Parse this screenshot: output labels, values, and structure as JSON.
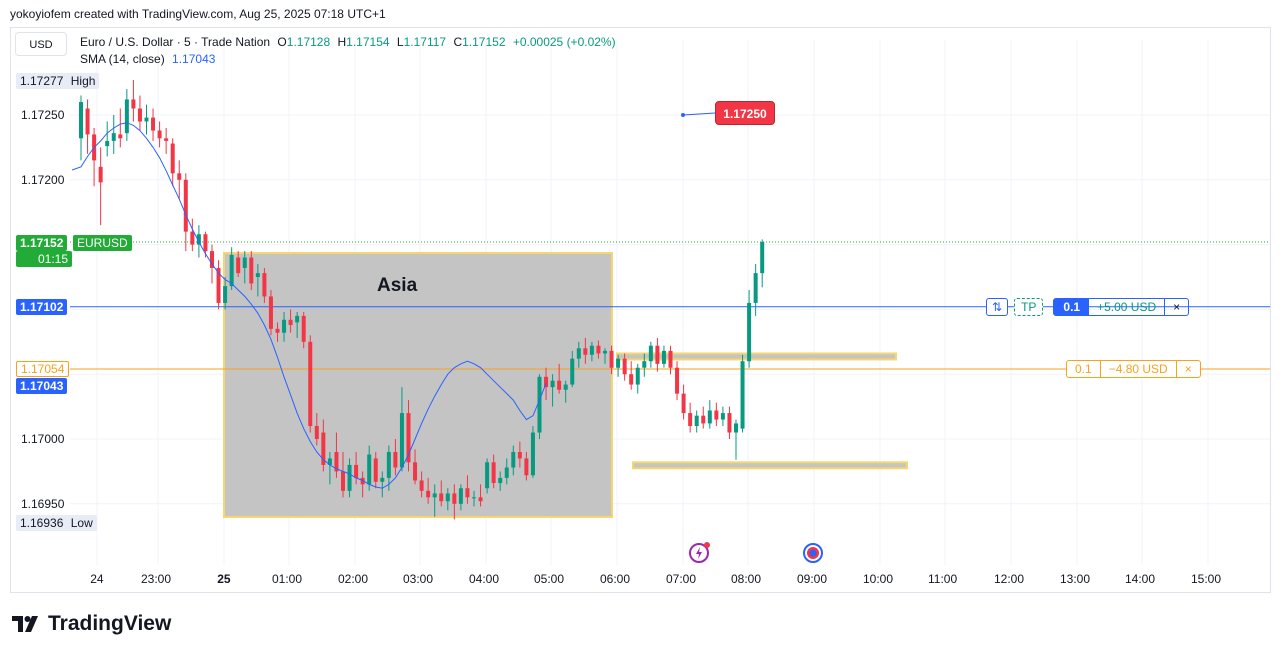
{
  "caption": "yokoyiofem created with TradingView.com, Aug 25, 2025 07:18 UTC+1",
  "currency_button": "USD",
  "legend": {
    "symbol": "Euro / U.S. Dollar · 5 · Trade Nation",
    "o_label": "O",
    "o": "1.17128",
    "h_label": "H",
    "h": "1.17154",
    "l_label": "L",
    "l": "1.17117",
    "c_label": "C",
    "c": "1.17152",
    "change": "+0.00025 (+0.02%)",
    "sma_label": "SMA (14, close)",
    "sma_value": "1.17043"
  },
  "colors": {
    "up": "#089981",
    "down": "#f23645",
    "sma": "#2962ff",
    "session_fill": "#c4c4c4",
    "session_border": "#f5d76e",
    "sl_line": "#f7a21b",
    "tp_line": "#2962ff"
  },
  "price_axis": {
    "ticks": [
      "1.17250",
      "1.17200",
      "1.17000",
      "1.16950"
    ],
    "high_price": "1.17277",
    "high_label": "High",
    "low_price": "1.16936",
    "low_label": "Low",
    "last_price": "1.17152",
    "symbol_tag": "EURUSD",
    "countdown": "01:15",
    "tp_price": "1.17102",
    "sl_price": "1.17054",
    "sma_price": "1.17043"
  },
  "time_axis": [
    "24",
    "23:00",
    "25",
    "01:00",
    "02:00",
    "03:00",
    "04:00",
    "05:00",
    "06:00",
    "07:00",
    "08:00",
    "09:00",
    "10:00",
    "11:00",
    "12:00",
    "13:00",
    "14:00",
    "15:00"
  ],
  "session_box": {
    "label": "Asia"
  },
  "callout": {
    "price": "1.17250"
  },
  "tp_order": {
    "icon": "⇅",
    "tp_label": "TP",
    "qty": "0.1",
    "pnl": "+5.00 USD",
    "close": "×"
  },
  "sl_order": {
    "qty": "0.1",
    "pnl": "−4.80 USD",
    "close": "×"
  },
  "footer": {
    "brand": "TradingView"
  },
  "chart_data": {
    "type": "candlestick",
    "series_name": "EURUSD",
    "timeframe": "5",
    "y_range": [
      1.1691,
      1.17305
    ],
    "x_range_labels": [
      "23:40",
      "15:40"
    ],
    "candles": [
      {
        "o": 1.17232,
        "h": 1.17265,
        "l": 1.17215,
        "c": 1.1726
      },
      {
        "o": 1.17255,
        "h": 1.17262,
        "l": 1.1722,
        "c": 1.17235
      },
      {
        "o": 1.17235,
        "h": 1.1724,
        "l": 1.17195,
        "c": 1.17215
      },
      {
        "o": 1.1721,
        "h": 1.17225,
        "l": 1.17165,
        "c": 1.17198
      },
      {
        "o": 1.17226,
        "h": 1.17245,
        "l": 1.17218,
        "c": 1.1723
      },
      {
        "o": 1.1723,
        "h": 1.1725,
        "l": 1.1722,
        "c": 1.17236
      },
      {
        "o": 1.17235,
        "h": 1.17255,
        "l": 1.17225,
        "c": 1.17232
      },
      {
        "o": 1.17236,
        "h": 1.1727,
        "l": 1.1723,
        "c": 1.17262
      },
      {
        "o": 1.17262,
        "h": 1.17277,
        "l": 1.17245,
        "c": 1.17255
      },
      {
        "o": 1.17255,
        "h": 1.17265,
        "l": 1.17238,
        "c": 1.17245
      },
      {
        "o": 1.17245,
        "h": 1.17258,
        "l": 1.17235,
        "c": 1.17248
      },
      {
        "o": 1.17248,
        "h": 1.17255,
        "l": 1.1723,
        "c": 1.17238
      },
      {
        "o": 1.17238,
        "h": 1.17245,
        "l": 1.17225,
        "c": 1.17232
      },
      {
        "o": 1.17232,
        "h": 1.1724,
        "l": 1.1722,
        "c": 1.1723
      },
      {
        "o": 1.17228,
        "h": 1.17232,
        "l": 1.17195,
        "c": 1.17205
      },
      {
        "o": 1.17205,
        "h": 1.17215,
        "l": 1.17185,
        "c": 1.172
      },
      {
        "o": 1.172,
        "h": 1.17205,
        "l": 1.17145,
        "c": 1.1716
      },
      {
        "o": 1.1716,
        "h": 1.1717,
        "l": 1.17145,
        "c": 1.1715
      },
      {
        "o": 1.1715,
        "h": 1.17165,
        "l": 1.1714,
        "c": 1.17158
      },
      {
        "o": 1.17158,
        "h": 1.1716,
        "l": 1.1714,
        "c": 1.17145
      },
      {
        "o": 1.17145,
        "h": 1.1715,
        "l": 1.1712,
        "c": 1.17132
      },
      {
        "o": 1.17132,
        "h": 1.17138,
        "l": 1.171,
        "c": 1.17105
      },
      {
        "o": 1.17105,
        "h": 1.17125,
        "l": 1.171,
        "c": 1.17118
      },
      {
        "o": 1.17118,
        "h": 1.17148,
        "l": 1.17115,
        "c": 1.17142
      },
      {
        "o": 1.1714,
        "h": 1.17145,
        "l": 1.17125,
        "c": 1.17128
      },
      {
        "o": 1.17132,
        "h": 1.17145,
        "l": 1.1712,
        "c": 1.1714
      },
      {
        "o": 1.1714,
        "h": 1.17145,
        "l": 1.17115,
        "c": 1.1712
      },
      {
        "o": 1.17125,
        "h": 1.17135,
        "l": 1.1711,
        "c": 1.17128
      },
      {
        "o": 1.17128,
        "h": 1.17132,
        "l": 1.17105,
        "c": 1.1711
      },
      {
        "o": 1.1711,
        "h": 1.17115,
        "l": 1.1708,
        "c": 1.17085
      },
      {
        "o": 1.17085,
        "h": 1.1709,
        "l": 1.17075,
        "c": 1.17082
      },
      {
        "o": 1.17082,
        "h": 1.17098,
        "l": 1.17075,
        "c": 1.17092
      },
      {
        "o": 1.17092,
        "h": 1.171,
        "l": 1.17082,
        "c": 1.17088
      },
      {
        "o": 1.1709,
        "h": 1.17098,
        "l": 1.17078,
        "c": 1.17095
      },
      {
        "o": 1.17095,
        "h": 1.17098,
        "l": 1.1707,
        "c": 1.17075
      },
      {
        "o": 1.17075,
        "h": 1.1708,
        "l": 1.17005,
        "c": 1.1701
      },
      {
        "o": 1.1701,
        "h": 1.1702,
        "l": 1.16995,
        "c": 1.17
      },
      {
        "o": 1.17005,
        "h": 1.17015,
        "l": 1.16975,
        "c": 1.1698
      },
      {
        "o": 1.1698,
        "h": 1.1699,
        "l": 1.16965,
        "c": 1.16985
      },
      {
        "o": 1.1699,
        "h": 1.17005,
        "l": 1.1697,
        "c": 1.16975
      },
      {
        "o": 1.16975,
        "h": 1.1699,
        "l": 1.16955,
        "c": 1.1696
      },
      {
        "o": 1.1696,
        "h": 1.16985,
        "l": 1.16955,
        "c": 1.1698
      },
      {
        "o": 1.1698,
        "h": 1.1699,
        "l": 1.16965,
        "c": 1.1697
      },
      {
        "o": 1.1697,
        "h": 1.16975,
        "l": 1.16955,
        "c": 1.16965
      },
      {
        "o": 1.16965,
        "h": 1.16995,
        "l": 1.1696,
        "c": 1.16988
      },
      {
        "o": 1.16985,
        "h": 1.1699,
        "l": 1.16962,
        "c": 1.16967
      },
      {
        "o": 1.16967,
        "h": 1.16975,
        "l": 1.16955,
        "c": 1.1697
      },
      {
        "o": 1.1697,
        "h": 1.16995,
        "l": 1.1696,
        "c": 1.1699
      },
      {
        "o": 1.1699,
        "h": 1.17,
        "l": 1.16972,
        "c": 1.16978
      },
      {
        "o": 1.16978,
        "h": 1.1704,
        "l": 1.16975,
        "c": 1.1702
      },
      {
        "o": 1.1702,
        "h": 1.1703,
        "l": 1.16975,
        "c": 1.16982
      },
      {
        "o": 1.16982,
        "h": 1.16992,
        "l": 1.16965,
        "c": 1.16968
      },
      {
        "o": 1.16968,
        "h": 1.16975,
        "l": 1.16955,
        "c": 1.1696
      },
      {
        "o": 1.1696,
        "h": 1.1697,
        "l": 1.1695,
        "c": 1.16955
      },
      {
        "o": 1.16955,
        "h": 1.16965,
        "l": 1.1694,
        "c": 1.16958
      },
      {
        "o": 1.16958,
        "h": 1.16968,
        "l": 1.16948,
        "c": 1.16952
      },
      {
        "o": 1.16952,
        "h": 1.16962,
        "l": 1.16945,
        "c": 1.16958
      },
      {
        "o": 1.16958,
        "h": 1.16965,
        "l": 1.16938,
        "c": 1.1695
      },
      {
        "o": 1.1695,
        "h": 1.16965,
        "l": 1.16945,
        "c": 1.16962
      },
      {
        "o": 1.16962,
        "h": 1.16972,
        "l": 1.1695,
        "c": 1.16955
      },
      {
        "o": 1.16955,
        "h": 1.1696,
        "l": 1.16948,
        "c": 1.16955
      },
      {
        "o": 1.16955,
        "h": 1.16965,
        "l": 1.16948,
        "c": 1.16952
      },
      {
        "o": 1.16962,
        "h": 1.16985,
        "l": 1.16958,
        "c": 1.16982
      },
      {
        "o": 1.16982,
        "h": 1.16988,
        "l": 1.16962,
        "c": 1.16966
      },
      {
        "o": 1.16966,
        "h": 1.16975,
        "l": 1.1696,
        "c": 1.1697
      },
      {
        "o": 1.1697,
        "h": 1.16985,
        "l": 1.16965,
        "c": 1.16978
      },
      {
        "o": 1.16978,
        "h": 1.16995,
        "l": 1.16972,
        "c": 1.1699
      },
      {
        "o": 1.1699,
        "h": 1.16998,
        "l": 1.16978,
        "c": 1.16985
      },
      {
        "o": 1.16985,
        "h": 1.1699,
        "l": 1.16968,
        "c": 1.16972
      },
      {
        "o": 1.16972,
        "h": 1.1701,
        "l": 1.1697,
        "c": 1.17005
      },
      {
        "o": 1.17005,
        "h": 1.1705,
        "l": 1.17,
        "c": 1.17048
      },
      {
        "o": 1.17048,
        "h": 1.17055,
        "l": 1.1703,
        "c": 1.1704
      },
      {
        "o": 1.1704,
        "h": 1.1705,
        "l": 1.17025,
        "c": 1.17045
      },
      {
        "o": 1.17045,
        "h": 1.17058,
        "l": 1.17035,
        "c": 1.17038
      },
      {
        "o": 1.17038,
        "h": 1.17045,
        "l": 1.17028,
        "c": 1.17042
      },
      {
        "o": 1.17042,
        "h": 1.17068,
        "l": 1.1704,
        "c": 1.17062
      },
      {
        "o": 1.17062,
        "h": 1.17075,
        "l": 1.17055,
        "c": 1.1707
      },
      {
        "o": 1.1707,
        "h": 1.17078,
        "l": 1.17058,
        "c": 1.17065
      },
      {
        "o": 1.17065,
        "h": 1.17075,
        "l": 1.1706,
        "c": 1.17072
      },
      {
        "o": 1.17072,
        "h": 1.17076,
        "l": 1.17062,
        "c": 1.17066
      },
      {
        "o": 1.17066,
        "h": 1.1707,
        "l": 1.17058,
        "c": 1.17068
      },
      {
        "o": 1.17068,
        "h": 1.17072,
        "l": 1.1705,
        "c": 1.17055
      },
      {
        "o": 1.17055,
        "h": 1.17065,
        "l": 1.17048,
        "c": 1.17062
      },
      {
        "o": 1.17062,
        "h": 1.17066,
        "l": 1.17045,
        "c": 1.1705
      },
      {
        "o": 1.1705,
        "h": 1.1706,
        "l": 1.17038,
        "c": 1.17042
      },
      {
        "o": 1.17042,
        "h": 1.17058,
        "l": 1.17035,
        "c": 1.17055
      },
      {
        "o": 1.17055,
        "h": 1.17066,
        "l": 1.17048,
        "c": 1.1706
      },
      {
        "o": 1.1706,
        "h": 1.17075,
        "l": 1.17055,
        "c": 1.17072
      },
      {
        "o": 1.17072,
        "h": 1.17078,
        "l": 1.17052,
        "c": 1.17058
      },
      {
        "o": 1.17058,
        "h": 1.17072,
        "l": 1.17055,
        "c": 1.17068
      },
      {
        "o": 1.17068,
        "h": 1.17072,
        "l": 1.1705,
        "c": 1.17055
      },
      {
        "o": 1.17055,
        "h": 1.1706,
        "l": 1.1703,
        "c": 1.17035
      },
      {
        "o": 1.17035,
        "h": 1.17042,
        "l": 1.17015,
        "c": 1.1702
      },
      {
        "o": 1.1702,
        "h": 1.17028,
        "l": 1.17005,
        "c": 1.1701
      },
      {
        "o": 1.1701,
        "h": 1.17022,
        "l": 1.17005,
        "c": 1.17018
      },
      {
        "o": 1.17018,
        "h": 1.17025,
        "l": 1.17008,
        "c": 1.17012
      },
      {
        "o": 1.17012,
        "h": 1.1703,
        "l": 1.17008,
        "c": 1.17022
      },
      {
        "o": 1.17022,
        "h": 1.17028,
        "l": 1.1701,
        "c": 1.17015
      },
      {
        "o": 1.17015,
        "h": 1.17025,
        "l": 1.1701,
        "c": 1.1702
      },
      {
        "o": 1.1702,
        "h": 1.17025,
        "l": 1.17,
        "c": 1.17005
      },
      {
        "o": 1.17005,
        "h": 1.17015,
        "l": 1.16984,
        "c": 1.17012
      },
      {
        "o": 1.17008,
        "h": 1.17065,
        "l": 1.17005,
        "c": 1.1706
      },
      {
        "o": 1.1706,
        "h": 1.17115,
        "l": 1.17055,
        "c": 1.17105
      },
      {
        "o": 1.17105,
        "h": 1.17135,
        "l": 1.17095,
        "c": 1.17128
      },
      {
        "o": 1.17128,
        "h": 1.17154,
        "l": 1.17117,
        "c": 1.17152
      }
    ],
    "sma_14": [
      1.1721,
      1.17218,
      1.17225,
      1.1723,
      1.17236,
      1.1724,
      1.17243,
      1.17244,
      1.17242,
      1.17238,
      1.17232,
      1.17225,
      1.17217,
      1.17207,
      1.17196,
      1.17185,
      1.17173,
      1.17162,
      1.17152,
      1.17143,
      1.17135,
      1.17128,
      1.17123,
      1.1712,
      1.17115,
      1.1711,
      1.17104,
      1.17097,
      1.17088,
      1.17077,
      1.17063,
      1.17048,
      1.17034,
      1.1702,
      1.17008,
      1.16998,
      1.1699,
      1.16984,
      1.1698,
      1.16977,
      1.16975,
      1.16973,
      1.1697,
      1.16968,
      1.16965,
      1.16963,
      1.16962,
      1.16965,
      1.1697,
      1.16978,
      1.16988,
      1.17,
      1.17012,
      1.17023,
      1.17033,
      1.17042,
      1.1705,
      1.17055,
      1.17058,
      1.1706,
      1.17058,
      1.17055,
      1.1705,
      1.17045,
      1.1704,
      1.17035,
      1.1703,
      1.17022,
      1.17015,
      1.17018,
      1.1703,
      1.17043
    ],
    "sma_start_index": 0,
    "levels": {
      "tp": 1.17102,
      "sl": 1.17054,
      "last": 1.17152
    },
    "zones": [
      {
        "y1": 1.17066,
        "y2": 1.17062
      },
      {
        "y1": 1.16982,
        "y2": 1.16978
      }
    ],
    "callout_point": 1.1725
  }
}
